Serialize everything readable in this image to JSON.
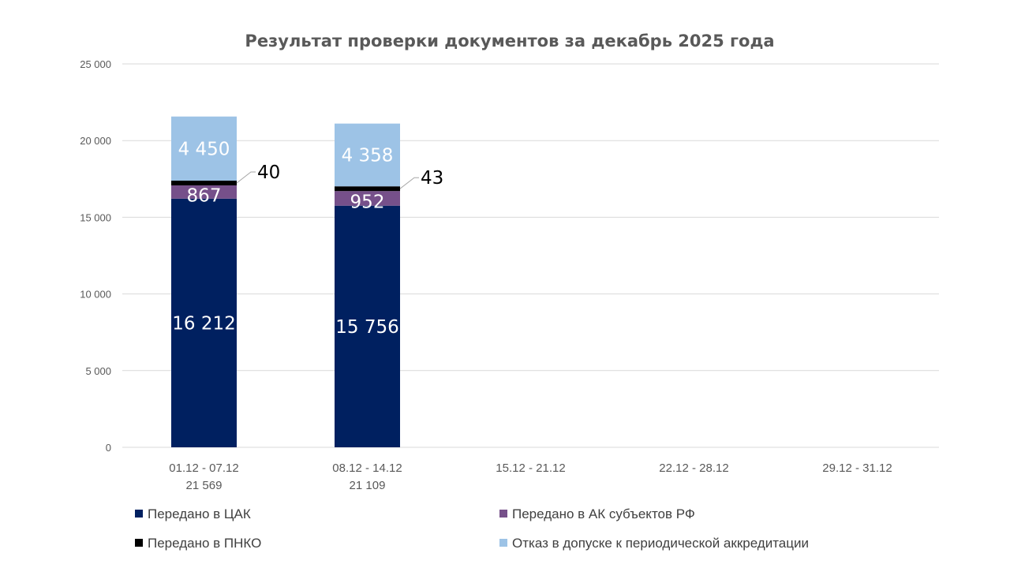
{
  "chart_data": {
    "type": "bar",
    "stacked": true,
    "title": "Результат проверки документов за декабрь 2025 года",
    "xlabel": "",
    "ylabel": "",
    "ylim": [
      0,
      25000
    ],
    "yticks": [
      0,
      5000,
      10000,
      15000,
      20000,
      25000
    ],
    "ytick_labels": [
      "0",
      "5 000",
      "10 000",
      "15 000",
      "20 000",
      "25 000"
    ],
    "grid": true,
    "categories": [
      "01.12 - 07.12",
      "08.12 - 14.12",
      "15.12 - 21.12",
      "22.12 - 28.12",
      "29.12 - 31.12"
    ],
    "category_totals": [
      "21 569",
      "21 109",
      "",
      "",
      ""
    ],
    "series": [
      {
        "name": "Передано в ЦАК",
        "color": "#002060",
        "values": [
          16212,
          15756,
          null,
          null,
          null
        ],
        "labels": [
          "16 212",
          "15 756"
        ],
        "label_color": "#ffffff"
      },
      {
        "name": "Передано в АК субъектов РФ",
        "color": "#76508A",
        "values": [
          867,
          952,
          null,
          null,
          null
        ],
        "labels": [
          "867",
          "952"
        ],
        "label_color": "#ffffff"
      },
      {
        "name": "Передано в ПНКО",
        "color": "#000000",
        "values": [
          40,
          43,
          null,
          null,
          null
        ],
        "labels": [
          "40",
          "43"
        ],
        "label_color": "#000000"
      },
      {
        "name": "Отказ в допуске к периодической аккредитации",
        "color": "#9DC3E6",
        "values": [
          4450,
          4358,
          null,
          null,
          null
        ],
        "labels": [
          "4 450",
          "4 358"
        ],
        "label_color": "#ffffff"
      }
    ],
    "legend_position": "bottom"
  }
}
